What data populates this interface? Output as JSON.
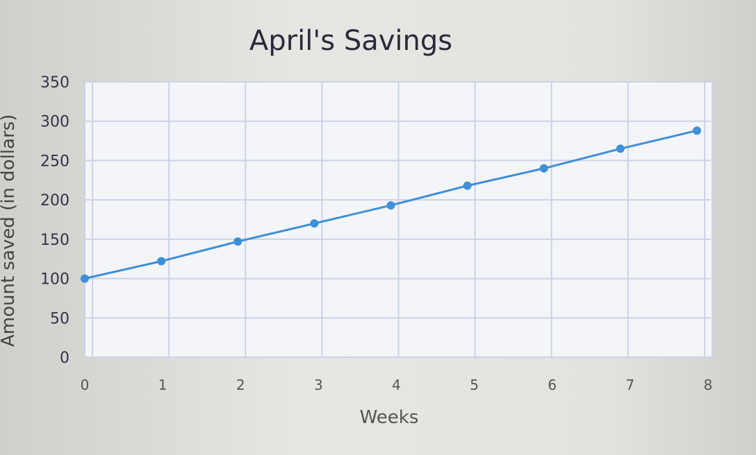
{
  "chart_data": {
    "type": "line",
    "title": "April's Savings",
    "xlabel": "Weeks",
    "ylabel": "Amount saved (in dollars)",
    "x": [
      0,
      1,
      2,
      3,
      4,
      5,
      6,
      7,
      8
    ],
    "series": [
      {
        "values": [
          100,
          122,
          147,
          170,
          193,
          218,
          240,
          265,
          288
        ]
      }
    ],
    "xlim": [
      0,
      8
    ],
    "ylim": [
      0,
      350
    ],
    "yticks": [
      0,
      50,
      100,
      150,
      200,
      250,
      300,
      350
    ],
    "xticks": [
      0,
      1,
      2,
      3,
      4,
      5,
      6,
      7,
      8
    ],
    "grid": true,
    "colors": {
      "line": "#3d8fd8",
      "grid": "#c9d3e6",
      "text": "#333348"
    }
  }
}
